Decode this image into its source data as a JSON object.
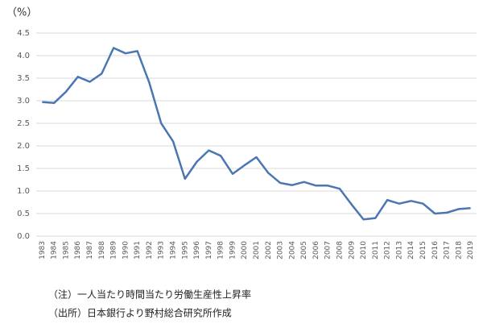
{
  "chart_data": {
    "type": "line",
    "y_label": "（%）",
    "categories": [
      "1983",
      "1984",
      "1985",
      "1986",
      "1987",
      "1988",
      "1989",
      "1990",
      "1991",
      "1992",
      "1993",
      "1994",
      "1995",
      "1996",
      "1997",
      "1998",
      "1999",
      "2000",
      "2001",
      "2002",
      "2003",
      "2004",
      "2005",
      "2006",
      "2007",
      "2008",
      "2009",
      "2010",
      "2011",
      "2012",
      "2013",
      "2014",
      "2015",
      "2016",
      "2017",
      "2018",
      "2019"
    ],
    "series": [
      {
        "color": "#4a76b2",
        "values": [
          2.97,
          2.95,
          3.2,
          3.53,
          3.42,
          3.6,
          4.17,
          4.05,
          4.1,
          3.4,
          2.5,
          2.1,
          1.27,
          1.65,
          1.9,
          1.78,
          1.38,
          1.57,
          1.75,
          1.4,
          1.18,
          1.13,
          1.2,
          1.12,
          1.12,
          1.05,
          0.7,
          0.37,
          0.4,
          0.8,
          0.72,
          0.78,
          0.72,
          0.5,
          0.52,
          0.6,
          0.62
        ]
      }
    ],
    "ylim": [
      0,
      4.5
    ],
    "yticks": [
      {
        "value": 0,
        "label": "0.0"
      },
      0.5,
      {
        "value": 1,
        "label": "1.0"
      },
      1.5,
      {
        "value": 2,
        "label": "2.0"
      },
      2.5,
      {
        "value": 3,
        "label": "3.0"
      },
      3.5,
      {
        "value": 4,
        "label": "4.0"
      },
      4.5
    ],
    "grid": true,
    "notes": [
      "（注）一人当たり時間当たり労働生産性上昇率",
      "（出所）日本銀行より野村総合研究所作成"
    ]
  }
}
